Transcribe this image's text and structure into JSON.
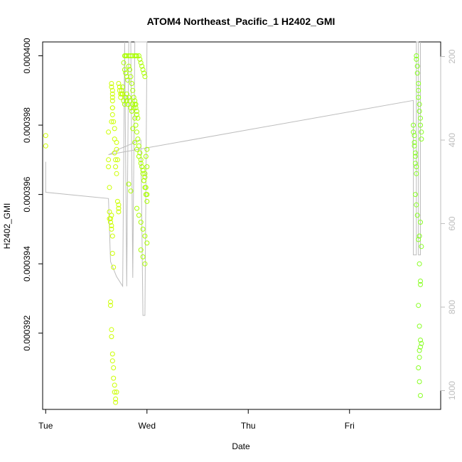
{
  "chart_data": {
    "type": "scatter",
    "title": "ATOM4 Northeast_Pacific_1 H2402_GMI",
    "xlabel": "Date",
    "ylabel": "H2402_GMI",
    "x_ticks": [
      "Tue",
      "Wed",
      "Thu",
      "Fri"
    ],
    "y_ticks": [
      "0.000392",
      "0.000394",
      "0.000396",
      "0.000398",
      "0.000400"
    ],
    "y_ticks_right": [
      "200",
      "400",
      "600",
      "800",
      "1000"
    ],
    "xlim_days": [
      -0.03,
      3.9
    ],
    "ylim": [
      0.0003898,
      0.0004004
    ],
    "ylim_right": [
      1045,
      165
    ],
    "grid": false,
    "colors": {
      "points_early": "#ccff00",
      "points_mid": "#aaff00",
      "points_late": "#88ff22",
      "pressure_line": "#bdbdbd",
      "axis": "#000000",
      "right_axis": "#bdbdbd"
    },
    "series": [
      {
        "kind": "points",
        "x": [
          0.0,
          0.0,
          0.62,
          0.62,
          0.62,
          0.63,
          0.63,
          0.63,
          0.64,
          0.64,
          0.65,
          0.65,
          0.65,
          0.66,
          0.66,
          0.67,
          0.67,
          0.68,
          0.68,
          0.68,
          0.69,
          0.69,
          0.7,
          0.7,
          0.7,
          0.71,
          0.71,
          0.72,
          0.72,
          0.72,
          0.64,
          0.64,
          0.65,
          0.65,
          0.66,
          0.66,
          0.67,
          0.67,
          0.68,
          0.68,
          0.69,
          0.69,
          0.7,
          0.66,
          0.66,
          0.66,
          0.65,
          0.65,
          0.66,
          0.66,
          0.66,
          0.66,
          0.65,
          0.72,
          0.73,
          0.73,
          0.74,
          0.74,
          0.75,
          0.75,
          0.76,
          0.76,
          0.77,
          0.78,
          0.79,
          0.8,
          0.8,
          0.81,
          0.82,
          0.83,
          0.84,
          0.85,
          0.86,
          0.87,
          0.88,
          0.89,
          0.9,
          0.77,
          0.78,
          0.79,
          0.8,
          0.81,
          0.82,
          0.83,
          0.84,
          0.85,
          0.86,
          0.87,
          0.88,
          0.89,
          0.9,
          0.91,
          0.78,
          0.79,
          0.8,
          0.82,
          0.84,
          0.86,
          0.88,
          0.89,
          0.9,
          0.92,
          0.93,
          0.94,
          0.95,
          0.96,
          0.97,
          0.98,
          0.88,
          0.89,
          0.9,
          0.91,
          0.92,
          0.93,
          0.94,
          0.95,
          0.96,
          0.97,
          0.98,
          0.99,
          1.0,
          0.9,
          0.92,
          0.94,
          0.96,
          0.98,
          1.0,
          0.94,
          0.96,
          0.98,
          1.0,
          0.97,
          0.99,
          0.98,
          1.0,
          0.99,
          1.0,
          0.86,
          0.88,
          0.9,
          0.92,
          0.94,
          0.96,
          0.98,
          0.82,
          0.84,
          3.63,
          3.63,
          3.64,
          3.64,
          3.64,
          3.65,
          3.65,
          3.65,
          3.66,
          3.66,
          3.66,
          3.66,
          3.67,
          3.67,
          3.68,
          3.68,
          3.68,
          3.69,
          3.69,
          3.7,
          3.7,
          3.71,
          3.71,
          3.65,
          3.66,
          3.67,
          3.68,
          3.69,
          3.7,
          3.68,
          3.69,
          3.7,
          3.7,
          3.69,
          3.68,
          3.69,
          3.7,
          3.69,
          3.7,
          3.7,
          3.69,
          3.71,
          3.71
        ],
        "y": [
          0.0003977,
          0.0003974,
          0.0003978,
          0.000397,
          0.0003968,
          0.0003962,
          0.0003955,
          0.0003953,
          0.0003952,
          0.0003953,
          0.0003954,
          0.0003951,
          0.000395,
          0.0003948,
          0.0003943,
          0.0003939,
          0.0003981,
          0.0003979,
          0.0003976,
          0.0003972,
          0.000397,
          0.0003968,
          0.0003966,
          0.0003975,
          0.0003973,
          0.000397,
          0.0003958,
          0.0003957,
          0.0003956,
          0.0003955,
          0.0003929,
          0.0003928,
          0.0003921,
          0.0003919,
          0.0003914,
          0.0003912,
          0.000391,
          0.0003907,
          0.0003905,
          0.0003903,
          0.0003901,
          0.00039,
          0.0003903,
          0.0003985,
          0.0003988,
          0.000399,
          0.0003992,
          0.0003991,
          0.0003989,
          0.0003987,
          0.0003985,
          0.0003983,
          0.0003981,
          0.0003992,
          0.0003991,
          0.000399,
          0.0003989,
          0.0003988,
          0.0003989,
          0.000399,
          0.0003991,
          0.0003989,
          0.0003987,
          0.0003986,
          0.0003988,
          0.0003989,
          0.0003987,
          0.0003986,
          0.0003988,
          0.0003987,
          0.0003985,
          0.0003984,
          0.0003986,
          0.0003985,
          0.0003987,
          0.0003986,
          0.0003984,
          0.0003998,
          0.0003996,
          0.0003995,
          0.0003994,
          0.0003993,
          0.0003997,
          0.0003996,
          0.0003994,
          0.0003992,
          0.000399,
          0.0003988,
          0.0003986,
          0.0003985,
          0.0003983,
          0.0003982,
          0.0004,
          0.0004,
          0.0004,
          0.0004,
          0.0004,
          0.0004,
          0.0004,
          0.0004,
          0.0004,
          0.0004,
          0.0003999,
          0.0003998,
          0.0003997,
          0.0003996,
          0.0003995,
          0.0003994,
          0.0003982,
          0.000398,
          0.0003978,
          0.0003976,
          0.0003974,
          0.0003972,
          0.000397,
          0.0003968,
          0.0003966,
          0.0003964,
          0.0003962,
          0.000396,
          0.0003958,
          0.0003956,
          0.0003954,
          0.0003952,
          0.000395,
          0.0003948,
          0.0003946,
          0.0003944,
          0.0003942,
          0.000394,
          0.000396,
          0.0003964,
          0.0003962,
          0.0003966,
          0.0003968,
          0.0003971,
          0.0003973,
          0.0003979,
          0.0003975,
          0.0003973,
          0.0003971,
          0.0003969,
          0.0003967,
          0.0003965,
          0.0003963,
          0.0003961,
          0.000398,
          0.0003978,
          0.0003977,
          0.0003975,
          0.0003974,
          0.0003972,
          0.0003971,
          0.0003969,
          0.0003968,
          0.0003966,
          0.0004,
          0.0003999,
          0.0003997,
          0.0003995,
          0.0003992,
          0.000399,
          0.0003988,
          0.0003986,
          0.0003984,
          0.0003982,
          0.000398,
          0.0003978,
          0.0003976,
          0.000396,
          0.0003957,
          0.0003954,
          0.0003947,
          0.000394,
          0.0003935,
          0.0003928,
          0.0003922,
          0.0003918,
          0.0003916,
          0.0003913,
          0.000391,
          0.0003906,
          0.0003902,
          0.0003948,
          0.0003952,
          0.0003934,
          0.0003915,
          0.0003945,
          0.0003917
        ]
      },
      {
        "kind": "line",
        "name": "",
        "x": [
          0.0,
          0.0,
          0.62,
          0.62,
          0.64,
          0.64,
          0.7,
          0.7,
          0.76,
          0.76,
          0.78,
          0.78,
          0.8,
          0.8,
          0.82,
          0.82,
          0.84,
          0.84,
          0.86,
          0.86,
          0.88,
          0.88,
          0.9,
          0.9,
          0.92,
          0.92,
          0.94,
          0.94,
          0.96,
          0.96,
          0.98,
          0.98,
          1.0,
          1.0,
          0.98,
          0.96,
          0.94,
          0.92,
          0.9,
          0.88,
          0.86,
          0.84,
          0.82,
          0.8,
          0.78,
          0.76,
          0.74,
          0.72,
          0.7,
          0.68,
          0.66,
          0.64,
          0.62,
          3.63,
          3.63,
          3.66,
          3.66,
          3.68,
          3.68,
          3.7,
          3.7
        ],
        "y": [
          452,
          525,
          540,
          540,
          691,
          691,
          727,
          727,
          750,
          750,
          165,
          165,
          750,
          750,
          165,
          165,
          165,
          165,
          730,
          730,
          165,
          165,
          165,
          165,
          165,
          165,
          165,
          165,
          165,
          165,
          165,
          165,
          165,
          165,
          820,
          820,
          400,
          400,
          403,
          405,
          408,
          410,
          412,
          414,
          416,
          418,
          420,
          422,
          425,
          427,
          430,
          433,
          435,
          305,
          675,
          675,
          165,
          165,
          675,
          675,
          165
        ]
      }
    ]
  }
}
